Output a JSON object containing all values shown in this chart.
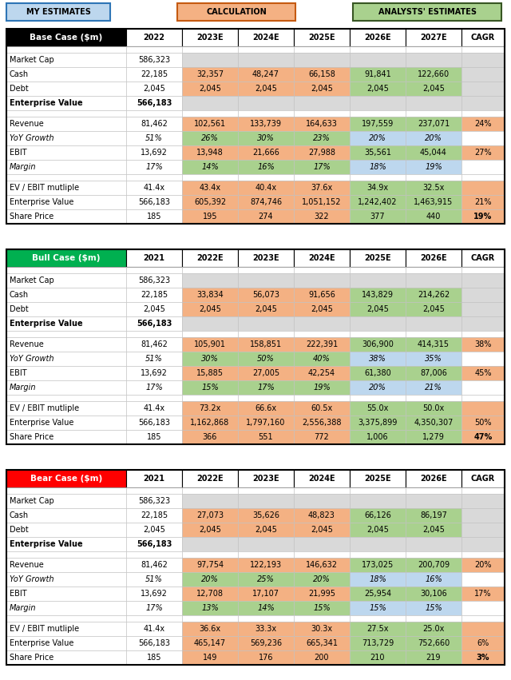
{
  "header_labels": [
    "MY ESTIMATES",
    "CALCULATION",
    "ANALYSTS' ESTIMATES"
  ],
  "header_colors": [
    "#bdd7ee",
    "#f4b183",
    "#a9d18e"
  ],
  "header_border_colors": [
    "#2e75b6",
    "#c55a11",
    "#375623"
  ],
  "base_case": {
    "title": "Base Case ($m)",
    "title_bg": "#000000",
    "title_fg": "#ffffff",
    "years": [
      "2022",
      "2023E",
      "2024E",
      "2025E",
      "2026E",
      "2027E",
      "CAGR"
    ],
    "rows": [
      {
        "label": "",
        "vals": [
          "",
          "",
          "",
          "",
          "",
          "",
          ""
        ],
        "bold": false,
        "italic": false,
        "spacer": true
      },
      {
        "label": "Market Cap",
        "vals": [
          "586,323",
          "",
          "",
          "",
          "",
          "",
          ""
        ],
        "bold": false,
        "italic": false,
        "type": "market"
      },
      {
        "label": "Cash",
        "vals": [
          "22,185",
          "32,357",
          "48,247",
          "66,158",
          "91,841",
          "122,660",
          ""
        ],
        "bold": false,
        "italic": false,
        "type": "cash"
      },
      {
        "label": "Debt",
        "vals": [
          "2,045",
          "2,045",
          "2,045",
          "2,045",
          "2,045",
          "2,045",
          ""
        ],
        "bold": false,
        "italic": false,
        "type": "cash"
      },
      {
        "label": "Enterprise Value",
        "vals": [
          "566,183",
          "",
          "",
          "",
          "",
          "",
          ""
        ],
        "bold": true,
        "italic": false,
        "type": "market"
      },
      {
        "label": "",
        "vals": [
          "",
          "",
          "",
          "",
          "",
          "",
          ""
        ],
        "bold": false,
        "italic": false,
        "spacer": true
      },
      {
        "label": "Revenue",
        "vals": [
          "81,462",
          "102,561",
          "133,739",
          "164,633",
          "197,559",
          "237,071",
          "24%"
        ],
        "bold": false,
        "italic": false,
        "type": "data"
      },
      {
        "label": "YoY Growth",
        "vals": [
          "51%",
          "26%",
          "30%",
          "23%",
          "20%",
          "20%",
          ""
        ],
        "bold": false,
        "italic": true,
        "type": "growth"
      },
      {
        "label": "EBIT",
        "vals": [
          "13,692",
          "13,948",
          "21,666",
          "27,988",
          "35,561",
          "45,044",
          "27%"
        ],
        "bold": false,
        "italic": false,
        "type": "data"
      },
      {
        "label": "Margin",
        "vals": [
          "17%",
          "14%",
          "16%",
          "17%",
          "18%",
          "19%",
          ""
        ],
        "bold": false,
        "italic": true,
        "type": "growth"
      },
      {
        "label": "",
        "vals": [
          "",
          "",
          "",
          "",
          "",
          "",
          ""
        ],
        "bold": false,
        "italic": false,
        "spacer": true
      },
      {
        "label": "EV / EBIT mutliple",
        "vals": [
          "41.4x",
          "43.4x",
          "40.4x",
          "37.6x",
          "34.9x",
          "32.5x",
          ""
        ],
        "bold": false,
        "italic": false,
        "type": "data"
      },
      {
        "label": "Enterprise Value",
        "vals": [
          "566,183",
          "605,392",
          "874,746",
          "1,051,152",
          "1,242,402",
          "1,463,915",
          "21%"
        ],
        "bold": false,
        "italic": false,
        "type": "data"
      },
      {
        "label": "Share Price",
        "vals": [
          "185",
          "195",
          "274",
          "322",
          "377",
          "440",
          "19%"
        ],
        "bold": false,
        "italic": false,
        "type": "share"
      }
    ]
  },
  "bull_case": {
    "title": "Bull Case ($m)",
    "title_bg": "#00b050",
    "title_fg": "#ffffff",
    "years": [
      "2021",
      "2022E",
      "2023E",
      "2024E",
      "2025E",
      "2026E",
      "CAGR"
    ],
    "rows": [
      {
        "label": "",
        "vals": [
          "",
          "",
          "",
          "",
          "",
          "",
          ""
        ],
        "bold": false,
        "italic": false,
        "spacer": true
      },
      {
        "label": "Market Cap",
        "vals": [
          "586,323",
          "",
          "",
          "",
          "",
          "",
          ""
        ],
        "bold": false,
        "italic": false,
        "type": "market"
      },
      {
        "label": "Cash",
        "vals": [
          "22,185",
          "33,834",
          "56,073",
          "91,656",
          "143,829",
          "214,262",
          ""
        ],
        "bold": false,
        "italic": false,
        "type": "cash"
      },
      {
        "label": "Debt",
        "vals": [
          "2,045",
          "2,045",
          "2,045",
          "2,045",
          "2,045",
          "2,045",
          ""
        ],
        "bold": false,
        "italic": false,
        "type": "cash"
      },
      {
        "label": "Enterprise Value",
        "vals": [
          "566,183",
          "",
          "",
          "",
          "",
          "",
          ""
        ],
        "bold": true,
        "italic": false,
        "type": "market"
      },
      {
        "label": "",
        "vals": [
          "",
          "",
          "",
          "",
          "",
          "",
          ""
        ],
        "bold": false,
        "italic": false,
        "spacer": true
      },
      {
        "label": "Revenue",
        "vals": [
          "81,462",
          "105,901",
          "158,851",
          "222,391",
          "306,900",
          "414,315",
          "38%"
        ],
        "bold": false,
        "italic": false,
        "type": "data"
      },
      {
        "label": "YoY Growth",
        "vals": [
          "51%",
          "30%",
          "50%",
          "40%",
          "38%",
          "35%",
          ""
        ],
        "bold": false,
        "italic": true,
        "type": "growth"
      },
      {
        "label": "EBIT",
        "vals": [
          "13,692",
          "15,885",
          "27,005",
          "42,254",
          "61,380",
          "87,006",
          "45%"
        ],
        "bold": false,
        "italic": false,
        "type": "data"
      },
      {
        "label": "Margin",
        "vals": [
          "17%",
          "15%",
          "17%",
          "19%",
          "20%",
          "21%",
          ""
        ],
        "bold": false,
        "italic": true,
        "type": "growth"
      },
      {
        "label": "",
        "vals": [
          "",
          "",
          "",
          "",
          "",
          "",
          ""
        ],
        "bold": false,
        "italic": false,
        "spacer": true
      },
      {
        "label": "EV / EBIT mutliple",
        "vals": [
          "41.4x",
          "73.2x",
          "66.6x",
          "60.5x",
          "55.0x",
          "50.0x",
          ""
        ],
        "bold": false,
        "italic": false,
        "type": "data"
      },
      {
        "label": "Enterprise Value",
        "vals": [
          "566,183",
          "1,162,868",
          "1,797,160",
          "2,556,388",
          "3,375,899",
          "4,350,307",
          "50%"
        ],
        "bold": false,
        "italic": false,
        "type": "data"
      },
      {
        "label": "Share Price",
        "vals": [
          "185",
          "366",
          "551",
          "772",
          "1,006",
          "1,279",
          "47%"
        ],
        "bold": false,
        "italic": false,
        "type": "share"
      }
    ]
  },
  "bear_case": {
    "title": "Bear Case ($m)",
    "title_bg": "#ff0000",
    "title_fg": "#ffffff",
    "years": [
      "2021",
      "2022E",
      "2023E",
      "2024E",
      "2025E",
      "2026E",
      "CAGR"
    ],
    "rows": [
      {
        "label": "",
        "vals": [
          "",
          "",
          "",
          "",
          "",
          "",
          ""
        ],
        "bold": false,
        "italic": false,
        "spacer": true
      },
      {
        "label": "Market Cap",
        "vals": [
          "586,323",
          "",
          "",
          "",
          "",
          "",
          ""
        ],
        "bold": false,
        "italic": false,
        "type": "market"
      },
      {
        "label": "Cash",
        "vals": [
          "22,185",
          "27,073",
          "35,626",
          "48,823",
          "66,126",
          "86,197",
          ""
        ],
        "bold": false,
        "italic": false,
        "type": "cash"
      },
      {
        "label": "Debt",
        "vals": [
          "2,045",
          "2,045",
          "2,045",
          "2,045",
          "2,045",
          "2,045",
          ""
        ],
        "bold": false,
        "italic": false,
        "type": "cash"
      },
      {
        "label": "Enterprise Value",
        "vals": [
          "566,183",
          "",
          "",
          "",
          "",
          "",
          ""
        ],
        "bold": true,
        "italic": false,
        "type": "market"
      },
      {
        "label": "",
        "vals": [
          "",
          "",
          "",
          "",
          "",
          "",
          ""
        ],
        "bold": false,
        "italic": false,
        "spacer": true
      },
      {
        "label": "Revenue",
        "vals": [
          "81,462",
          "97,754",
          "122,193",
          "146,632",
          "173,025",
          "200,709",
          "20%"
        ],
        "bold": false,
        "italic": false,
        "type": "data"
      },
      {
        "label": "YoY Growth",
        "vals": [
          "51%",
          "20%",
          "25%",
          "20%",
          "18%",
          "16%",
          ""
        ],
        "bold": false,
        "italic": true,
        "type": "growth"
      },
      {
        "label": "EBIT",
        "vals": [
          "13,692",
          "12,708",
          "17,107",
          "21,995",
          "25,954",
          "30,106",
          "17%"
        ],
        "bold": false,
        "italic": false,
        "type": "data"
      },
      {
        "label": "Margin",
        "vals": [
          "17%",
          "13%",
          "14%",
          "15%",
          "15%",
          "15%",
          ""
        ],
        "bold": false,
        "italic": true,
        "type": "growth"
      },
      {
        "label": "",
        "vals": [
          "",
          "",
          "",
          "",
          "",
          "",
          ""
        ],
        "bold": false,
        "italic": false,
        "spacer": true
      },
      {
        "label": "EV / EBIT mutliple",
        "vals": [
          "41.4x",
          "36.6x",
          "33.3x",
          "30.3x",
          "27.5x",
          "25.0x",
          ""
        ],
        "bold": false,
        "italic": false,
        "type": "data"
      },
      {
        "label": "Enterprise Value",
        "vals": [
          "566,183",
          "465,147",
          "569,236",
          "665,341",
          "713,729",
          "752,660",
          "6%"
        ],
        "bold": false,
        "italic": false,
        "type": "data"
      },
      {
        "label": "Share Price",
        "vals": [
          "185",
          "149",
          "176",
          "200",
          "210",
          "219",
          "3%"
        ],
        "bold": false,
        "italic": false,
        "type": "share"
      }
    ]
  }
}
